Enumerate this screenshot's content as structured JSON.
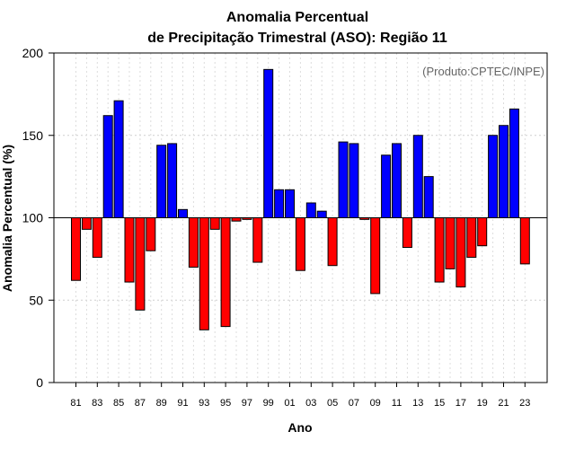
{
  "chart_data": {
    "type": "bar",
    "title_line1": "Anomalia Percentual",
    "title_line2": "de Precipitação Trimestral (ASO): Região 11",
    "credit": "(Produto:CPTEC/INPE)",
    "xlabel": "Ano",
    "ylabel": "Anomalia Percentual (%)",
    "ylim": [
      0,
      200
    ],
    "yticks": [
      0,
      50,
      100,
      150,
      200
    ],
    "baseline": 100,
    "grid": true,
    "colors": {
      "above": "#0000ff",
      "below": "#ff0000",
      "edge": "#000000"
    },
    "categories": [
      "81",
      "82",
      "83",
      "84",
      "85",
      "86",
      "87",
      "88",
      "89",
      "90",
      "91",
      "92",
      "93",
      "94",
      "95",
      "96",
      "97",
      "98",
      "99",
      "00",
      "01",
      "02",
      "03",
      "04",
      "05",
      "06",
      "07",
      "08",
      "09",
      "10",
      "11",
      "12",
      "13",
      "14",
      "15",
      "16",
      "17",
      "18",
      "19",
      "20",
      "21",
      "22",
      "23"
    ],
    "tick_labels": [
      "81",
      "83",
      "85",
      "87",
      "89",
      "91",
      "93",
      "95",
      "97",
      "99",
      "01",
      "03",
      "05",
      "07",
      "09",
      "11",
      "13",
      "15",
      "17",
      "19",
      "21",
      "23"
    ],
    "values": [
      62,
      93,
      76,
      162,
      171,
      61,
      44,
      80,
      144,
      145,
      105,
      70,
      32,
      93,
      34,
      98,
      99,
      73,
      190,
      117,
      117,
      68,
      109,
      104,
      71,
      146,
      145,
      99,
      54,
      138,
      145,
      82,
      150,
      125,
      61,
      69,
      58,
      76,
      83,
      150,
      156,
      166,
      72
    ]
  }
}
